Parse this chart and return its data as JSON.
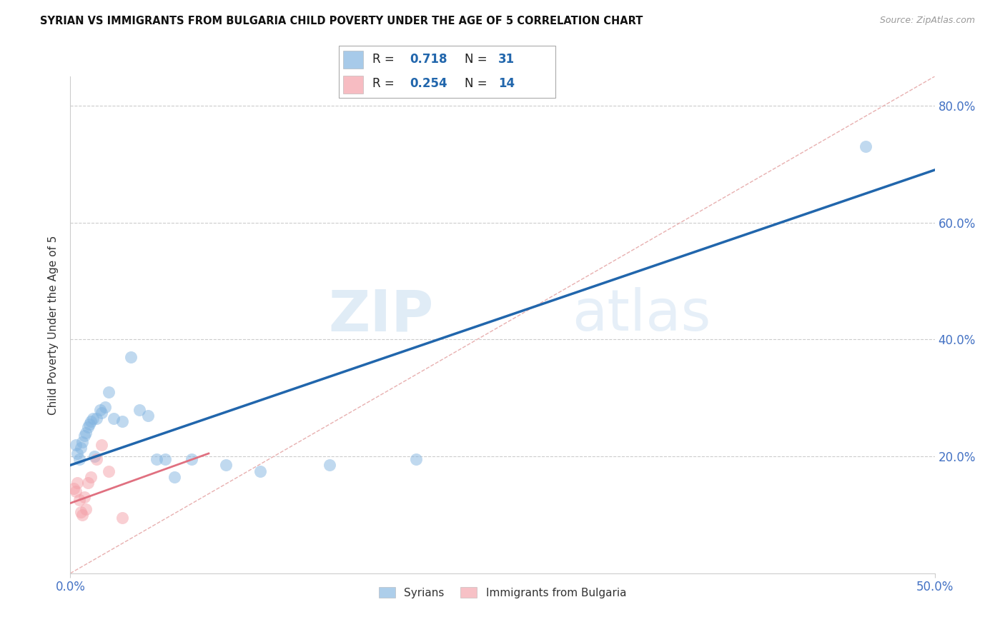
{
  "title": "SYRIAN VS IMMIGRANTS FROM BULGARIA CHILD POVERTY UNDER THE AGE OF 5 CORRELATION CHART",
  "source": "Source: ZipAtlas.com",
  "ylabel": "Child Poverty Under the Age of 5",
  "xlim": [
    0.0,
    0.5
  ],
  "ylim": [
    0.0,
    0.85
  ],
  "xticks": [
    0.0,
    0.5
  ],
  "xtick_labels": [
    "0.0%",
    "50.0%"
  ],
  "ytick_labels": [
    "20.0%",
    "40.0%",
    "60.0%",
    "80.0%"
  ],
  "yticks": [
    0.2,
    0.4,
    0.6,
    0.8
  ],
  "legend_r1_val": "0.718",
  "legend_n1_val": "31",
  "legend_r2_val": "0.254",
  "legend_n2_val": "14",
  "watermark_zip": "ZIP",
  "watermark_atlas": "atlas",
  "blue_color": "#82B4E0",
  "pink_color": "#F4A0A8",
  "line_blue": "#2166AC",
  "line_pink": "#E07080",
  "dashed_line_color": "#E8B0B0",
  "syrians_label": "Syrians",
  "bulgaria_label": "Immigrants from Bulgaria",
  "syrians_x": [
    0.003,
    0.004,
    0.005,
    0.006,
    0.007,
    0.008,
    0.009,
    0.01,
    0.011,
    0.012,
    0.013,
    0.014,
    0.015,
    0.017,
    0.018,
    0.02,
    0.022,
    0.025,
    0.03,
    0.035,
    0.04,
    0.045,
    0.05,
    0.055,
    0.06,
    0.07,
    0.09,
    0.11,
    0.15,
    0.2,
    0.46
  ],
  "syrians_y": [
    0.22,
    0.205,
    0.195,
    0.215,
    0.225,
    0.235,
    0.24,
    0.25,
    0.255,
    0.26,
    0.265,
    0.2,
    0.265,
    0.28,
    0.275,
    0.285,
    0.31,
    0.265,
    0.26,
    0.37,
    0.28,
    0.27,
    0.195,
    0.195,
    0.165,
    0.195,
    0.185,
    0.175,
    0.185,
    0.195,
    0.73
  ],
  "bulgaria_x": [
    0.002,
    0.003,
    0.004,
    0.005,
    0.006,
    0.007,
    0.008,
    0.009,
    0.01,
    0.012,
    0.015,
    0.018,
    0.022,
    0.03
  ],
  "bulgaria_y": [
    0.145,
    0.14,
    0.155,
    0.125,
    0.105,
    0.1,
    0.13,
    0.11,
    0.155,
    0.165,
    0.195,
    0.22,
    0.175,
    0.095
  ],
  "blue_line_x": [
    0.0,
    0.5
  ],
  "blue_line_y": [
    0.185,
    0.69
  ],
  "pink_line_x": [
    0.0,
    0.08
  ],
  "pink_line_y": [
    0.12,
    0.205
  ],
  "dashed_line_x": [
    0.0,
    0.5
  ],
  "dashed_line_y": [
    0.0,
    0.85
  ],
  "text_color": "#333333",
  "blue_label_color": "#2166AC",
  "tick_color": "#4472C4"
}
